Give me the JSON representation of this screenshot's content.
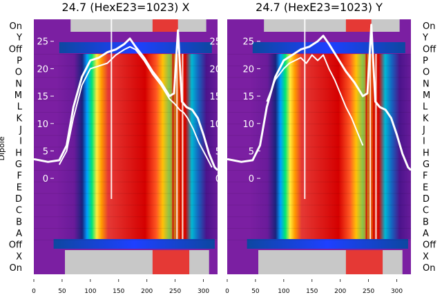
{
  "chart_data": [
    {
      "type": "heatmap",
      "title": "24.7 (HexE23=1023) X",
      "ylabel": "Dipole",
      "xlim": [
        0,
        325
      ],
      "x_ticks": [
        0,
        50,
        100,
        150,
        200,
        250,
        300
      ],
      "right_overlay_ticks": [
        25,
        20,
        15,
        10,
        5,
        0
      ],
      "overlay_ylim": [
        -17.5,
        29
      ],
      "dipole_labels_top_to_bottom": [
        "On",
        "Y",
        "Off",
        "P",
        "O",
        "N",
        "M",
        "L",
        "K",
        "J",
        "I",
        "H",
        "G",
        "F",
        "E",
        "D",
        "C",
        "B",
        "A",
        "Off",
        "X",
        "On"
      ],
      "overlay_traces": [
        {
          "x": [
            0,
            10,
            25,
            45,
            58,
            70,
            85,
            100,
            115,
            130,
            145,
            160,
            170,
            180,
            195,
            210,
            225,
            240,
            248,
            255,
            262,
            270,
            280,
            290,
            300,
            310,
            320,
            325
          ],
          "y": [
            3.5,
            3.3,
            3,
            3.3,
            6,
            13,
            18.5,
            21.5,
            22,
            23,
            23.5,
            24.5,
            25.5,
            24,
            22,
            19.5,
            17.5,
            15,
            15.5,
            27,
            14,
            13,
            12.5,
            11,
            8,
            4.5,
            2,
            1.5
          ]
        },
        {
          "x": [
            45,
            58,
            70,
            85,
            100,
            115,
            130,
            145,
            160,
            170,
            180,
            195,
            210,
            225,
            240,
            250,
            258,
            265,
            272,
            282,
            292,
            305,
            315
          ],
          "y": [
            2.5,
            5,
            11,
            17,
            20,
            20.5,
            21,
            22.5,
            23.5,
            24,
            23.5,
            21.5,
            19,
            17,
            14.5,
            13.5,
            12.5,
            12,
            11,
            9,
            6.5,
            4,
            2
          ]
        }
      ]
    },
    {
      "type": "heatmap",
      "title": "24.7 (HexE23=1023) Y",
      "xlim": [
        0,
        325
      ],
      "x_ticks": [
        0,
        50,
        100,
        150,
        200,
        250,
        300
      ],
      "left_overlay_ticks": [
        25,
        20,
        15,
        10,
        5,
        0
      ],
      "overlay_ylim": [
        -17.5,
        29
      ],
      "dipole_labels_top_to_bottom": [
        "On",
        "Y",
        "Off",
        "P",
        "O",
        "N",
        "M",
        "L",
        "K",
        "J",
        "I",
        "H",
        "G",
        "F",
        "E",
        "D",
        "C",
        "B",
        "A",
        "Off",
        "X",
        "On"
      ],
      "overlay_traces": [
        {
          "x": [
            0,
            10,
            25,
            45,
            58,
            70,
            85,
            100,
            115,
            130,
            145,
            160,
            170,
            180,
            195,
            210,
            225,
            240,
            248,
            255,
            262,
            270,
            280,
            290,
            300,
            310,
            320,
            325
          ],
          "y": [
            3.5,
            3.3,
            3,
            3.3,
            6,
            13,
            18.5,
            21.5,
            22.5,
            23.5,
            24,
            25,
            26,
            24.5,
            22,
            19.5,
            17.5,
            15,
            15.5,
            28,
            14,
            13,
            12.5,
            11,
            8,
            4.5,
            2,
            1.5
          ]
        },
        {
          "x": [
            70,
            85,
            100,
            110,
            120,
            130,
            140,
            150,
            160,
            170,
            180,
            190,
            200,
            210,
            220,
            230,
            240
          ],
          "y": [
            14,
            18,
            20,
            21,
            21.5,
            22,
            21,
            22.5,
            21.5,
            22.5,
            20,
            18,
            15.5,
            13,
            11,
            8.5,
            6
          ]
        }
      ]
    }
  ]
}
